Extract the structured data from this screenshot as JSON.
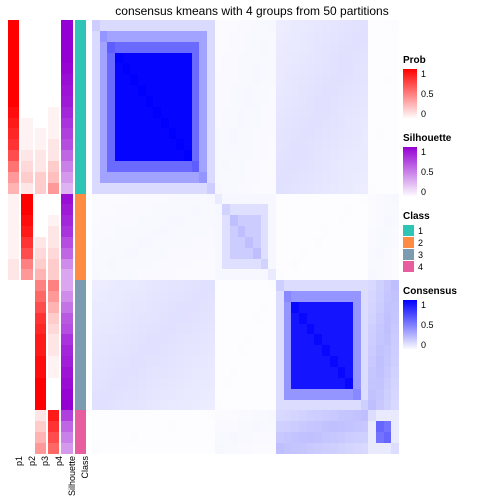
{
  "title": "consensus kmeans with 4 groups from 50 partitions",
  "background_color": "#ffffff",
  "n_samples": 40,
  "cluster_sizes": [
    16,
    8,
    12,
    4
  ],
  "annotation_columns": [
    {
      "name": "p1",
      "type": "prob"
    },
    {
      "name": "p2",
      "type": "prob"
    },
    {
      "name": "p3",
      "type": "prob"
    },
    {
      "name": "p4",
      "type": "prob"
    },
    {
      "name": "Silhouette",
      "type": "silhouette"
    },
    {
      "name": "Class",
      "type": "class"
    }
  ],
  "prob_colormap": {
    "low": "#ffffff",
    "high": "#ff0000"
  },
  "silhouette_colormap": {
    "low": "#ffffff",
    "high": "#9400d3"
  },
  "consensus_colormap": {
    "low": "#ffffff",
    "high": "#0000ff"
  },
  "class_colors": [
    "#2ec4b6",
    "#ff8c42",
    "#7b9bb0",
    "#e85d9e"
  ],
  "annotation_data": {
    "p1": [
      1.0,
      1.0,
      1.0,
      1.0,
      1.0,
      1.0,
      1.0,
      1.0,
      0.95,
      0.9,
      0.85,
      0.8,
      0.7,
      0.55,
      0.4,
      0.3,
      0.05,
      0.05,
      0.05,
      0.05,
      0.05,
      0.05,
      0.1,
      0.1,
      0.0,
      0.0,
      0.0,
      0.0,
      0.0,
      0.0,
      0.0,
      0.0,
      0.0,
      0.0,
      0.0,
      0.0,
      0.0,
      0.0,
      0.0,
      0.0
    ],
    "p2": [
      0.0,
      0.0,
      0.0,
      0.0,
      0.0,
      0.0,
      0.0,
      0.0,
      0.0,
      0.05,
      0.05,
      0.05,
      0.1,
      0.15,
      0.2,
      0.1,
      1.0,
      1.0,
      0.95,
      0.9,
      0.8,
      0.7,
      0.5,
      0.4,
      0.0,
      0.0,
      0.0,
      0.0,
      0.0,
      0.0,
      0.0,
      0.0,
      0.0,
      0.0,
      0.0,
      0.0,
      0.0,
      0.0,
      0.0,
      0.0
    ],
    "p3": [
      0.0,
      0.0,
      0.0,
      0.0,
      0.0,
      0.0,
      0.0,
      0.0,
      0.0,
      0.0,
      0.05,
      0.05,
      0.1,
      0.1,
      0.2,
      0.2,
      0.0,
      0.0,
      0.0,
      0.0,
      0.1,
      0.15,
      0.2,
      0.3,
      0.5,
      0.6,
      0.7,
      0.8,
      0.85,
      0.9,
      0.9,
      0.95,
      0.95,
      1.0,
      1.0,
      1.0,
      0.1,
      0.2,
      0.3,
      0.4
    ],
    "p4": [
      0.0,
      0.0,
      0.0,
      0.0,
      0.0,
      0.0,
      0.0,
      0.0,
      0.05,
      0.05,
      0.05,
      0.1,
      0.1,
      0.2,
      0.25,
      0.4,
      0.0,
      0.0,
      0.05,
      0.1,
      0.1,
      0.15,
      0.2,
      0.2,
      0.5,
      0.4,
      0.3,
      0.2,
      0.15,
      0.1,
      0.1,
      0.05,
      0.05,
      0.0,
      0.0,
      0.0,
      0.9,
      0.8,
      0.7,
      0.6
    ],
    "Silhouette": [
      1.0,
      1.0,
      1.0,
      1.0,
      0.98,
      0.95,
      0.92,
      0.9,
      0.85,
      0.8,
      0.75,
      0.7,
      0.6,
      0.5,
      0.4,
      0.3,
      0.95,
      0.9,
      0.85,
      0.8,
      0.7,
      0.6,
      0.45,
      0.35,
      0.35,
      0.45,
      0.55,
      0.65,
      0.7,
      0.8,
      0.85,
      0.88,
      0.92,
      0.95,
      0.98,
      1.0,
      0.75,
      0.6,
      0.5,
      0.4
    ],
    "Class": [
      1,
      1,
      1,
      1,
      1,
      1,
      1,
      1,
      1,
      1,
      1,
      1,
      1,
      1,
      1,
      1,
      2,
      2,
      2,
      2,
      2,
      2,
      2,
      2,
      3,
      3,
      3,
      3,
      3,
      3,
      3,
      3,
      3,
      3,
      3,
      3,
      4,
      4,
      4,
      4
    ]
  },
  "consensus_blocks": {
    "diagonal_intensity": [
      0.98,
      0.2,
      0.92,
      0.55
    ],
    "off_diagonal": {
      "1_2": 0.03,
      "1_3": 0.12,
      "1_4": 0.01,
      "2_3": 0.01,
      "2_4": 0.03,
      "3_4": 0.25
    },
    "edge_falloff": 0.5
  },
  "legends": {
    "prob": {
      "title": "Prob",
      "ticks": [
        "1",
        "0.5",
        "0"
      ]
    },
    "silhouette": {
      "title": "Silhouette",
      "ticks": [
        "1",
        "0.5",
        "0"
      ]
    },
    "class": {
      "title": "Class",
      "items": [
        "1",
        "2",
        "3",
        "4"
      ]
    },
    "consensus": {
      "title": "Consensus",
      "ticks": [
        "1",
        "0.5",
        "0"
      ]
    }
  },
  "fontsize_title": 12,
  "fontsize_labels": 9
}
